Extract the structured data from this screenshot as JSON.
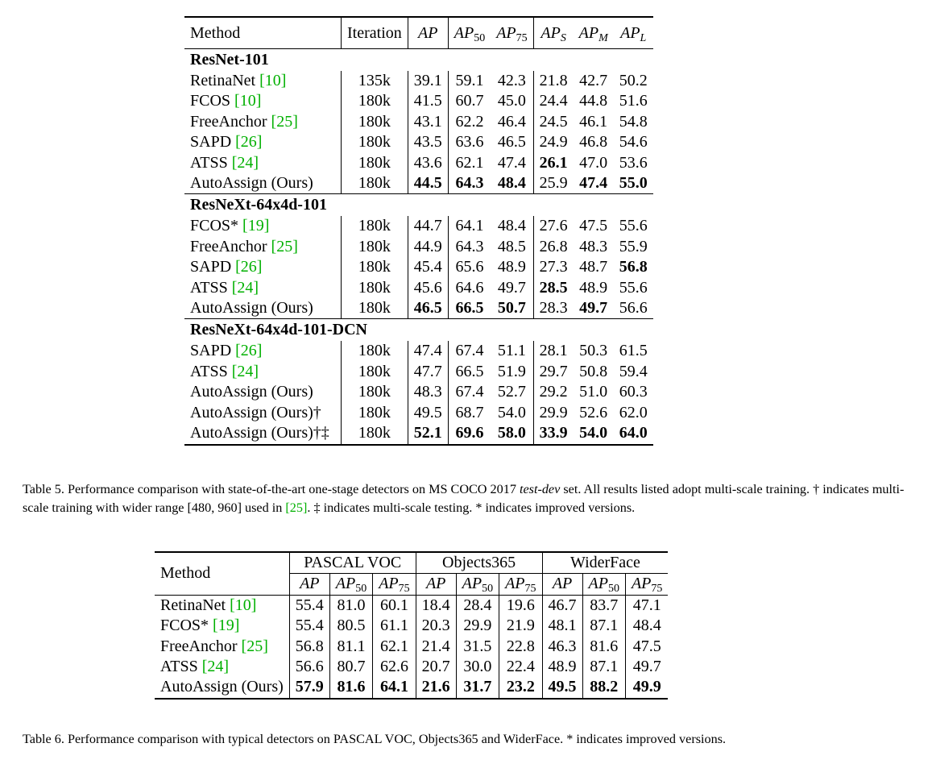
{
  "table5": {
    "headers": {
      "method": "Method",
      "iteration": "Iteration",
      "ap": "AP",
      "ap50": "AP",
      "ap50_sub": "50",
      "ap75": "AP",
      "ap75_sub": "75",
      "aps": "AP",
      "aps_sub": "S",
      "apm": "AP",
      "apm_sub": "M",
      "apl": "AP",
      "apl_sub": "L"
    },
    "group1": {
      "title": "ResNet-101",
      "rows": [
        {
          "name": "RetinaNet ",
          "cite": "[10]",
          "iter": "135k",
          "ap": "39.1",
          "ap50": "59.1",
          "ap75": "42.3",
          "aps": "21.8",
          "apm": "42.7",
          "apl": "50.2"
        },
        {
          "name": "FCOS ",
          "cite": "[10]",
          "iter": "180k",
          "ap": "41.5",
          "ap50": "60.7",
          "ap75": "45.0",
          "aps": "24.4",
          "apm": "44.8",
          "apl": "51.6"
        },
        {
          "name": "FreeAnchor ",
          "cite": "[25]",
          "iter": "180k",
          "ap": "43.1",
          "ap50": "62.2",
          "ap75": "46.4",
          "aps": "24.5",
          "apm": "46.1",
          "apl": "54.8"
        },
        {
          "name": "SAPD ",
          "cite": "[26]",
          "iter": "180k",
          "ap": "43.5",
          "ap50": "63.6",
          "ap75": "46.5",
          "aps": "24.9",
          "apm": "46.8",
          "apl": "54.6"
        },
        {
          "name": "ATSS ",
          "cite": "[24]",
          "iter": "180k",
          "ap": "43.6",
          "ap50": "62.1",
          "ap75": "47.4",
          "aps": "26.1",
          "apm": "47.0",
          "apl": "53.6"
        },
        {
          "name": "AutoAssign (Ours)",
          "cite": "",
          "iter": "180k",
          "ap": "44.5",
          "ap50": "64.3",
          "ap75": "48.4",
          "aps": "25.9",
          "apm": "47.4",
          "apl": "55.0"
        }
      ]
    },
    "group2": {
      "title": "ResNeXt-64x4d-101",
      "rows": [
        {
          "name": "FCOS* ",
          "cite": "[19]",
          "iter": "180k",
          "ap": "44.7",
          "ap50": "64.1",
          "ap75": "48.4",
          "aps": "27.6",
          "apm": "47.5",
          "apl": "55.6"
        },
        {
          "name": "FreeAnchor ",
          "cite": "[25]",
          "iter": "180k",
          "ap": "44.9",
          "ap50": "64.3",
          "ap75": "48.5",
          "aps": "26.8",
          "apm": "48.3",
          "apl": "55.9"
        },
        {
          "name": "SAPD ",
          "cite": "[26]",
          "iter": "180k",
          "ap": "45.4",
          "ap50": "65.6",
          "ap75": "48.9",
          "aps": "27.3",
          "apm": "48.7",
          "apl": "56.8"
        },
        {
          "name": "ATSS ",
          "cite": "[24]",
          "iter": "180k",
          "ap": "45.6",
          "ap50": "64.6",
          "ap75": "49.7",
          "aps": "28.5",
          "apm": "48.9",
          "apl": "55.6"
        },
        {
          "name": "AutoAssign (Ours)",
          "cite": "",
          "iter": "180k",
          "ap": "46.5",
          "ap50": "66.5",
          "ap75": "50.7",
          "aps": "28.3",
          "apm": "49.7",
          "apl": "56.6"
        }
      ]
    },
    "group3": {
      "title": "ResNeXt-64x4d-101-DCN",
      "rows": [
        {
          "name": "SAPD ",
          "cite": "[26]",
          "iter": "180k",
          "ap": "47.4",
          "ap50": "67.4",
          "ap75": "51.1",
          "aps": "28.1",
          "apm": "50.3",
          "apl": "61.5"
        },
        {
          "name": "ATSS ",
          "cite": "[24]",
          "iter": "180k",
          "ap": "47.7",
          "ap50": "66.5",
          "ap75": "51.9",
          "aps": "29.7",
          "apm": "50.8",
          "apl": "59.4"
        },
        {
          "name": "AutoAssign (Ours)",
          "cite": "",
          "iter": "180k",
          "ap": "48.3",
          "ap50": "67.4",
          "ap75": "52.7",
          "aps": "29.2",
          "apm": "51.0",
          "apl": "60.3"
        },
        {
          "name": "AutoAssign (Ours)†",
          "cite": "",
          "iter": "180k",
          "ap": "49.5",
          "ap50": "68.7",
          "ap75": "54.0",
          "aps": "29.9",
          "apm": "52.6",
          "apl": "62.0"
        },
        {
          "name": "AutoAssign (Ours)†‡",
          "cite": "",
          "iter": "180k",
          "ap": "52.1",
          "ap50": "69.6",
          "ap75": "58.0",
          "aps": "33.9",
          "apm": "54.0",
          "apl": "64.0"
        }
      ]
    },
    "caption": {
      "p1": "Table 5. Performance comparison with state-of-the-art one-stage detectors on MS COCO 2017 ",
      "p2": "test-dev",
      "p3": " set. All results listed adopt multi-scale training. † indicates multi-scale training with wider range ",
      "p4": "[480, 960]",
      "p5": " used in ",
      "cite": "[25]",
      "p6": ". ‡ indicates multi-scale testing. * indicates improved versions."
    }
  },
  "table6": {
    "headers": {
      "method": "Method",
      "voc": "PASCAL VOC",
      "obj": "Objects365",
      "wider": "WiderFace",
      "ap": "AP",
      "ap50": "AP",
      "ap50_sub": "50",
      "ap75": "AP",
      "ap75_sub": "75"
    },
    "rows": [
      {
        "name": "RetinaNet ",
        "cite": "[10]",
        "v": [
          "55.4",
          "81.0",
          "60.1"
        ],
        "o": [
          "18.4",
          "28.4",
          "19.6"
        ],
        "w": [
          "46.7",
          "83.7",
          "47.1"
        ]
      },
      {
        "name": "FCOS* ",
        "cite": "[19]",
        "v": [
          "55.4",
          "80.5",
          "61.1"
        ],
        "o": [
          "20.3",
          "29.9",
          "21.9"
        ],
        "w": [
          "48.1",
          "87.1",
          "48.4"
        ]
      },
      {
        "name": "FreeAnchor ",
        "cite": "[25]",
        "v": [
          "56.8",
          "81.1",
          "62.1"
        ],
        "o": [
          "21.4",
          "31.5",
          "22.8"
        ],
        "w": [
          "46.3",
          "81.6",
          "47.5"
        ]
      },
      {
        "name": "ATSS ",
        "cite": "[24]",
        "v": [
          "56.6",
          "80.7",
          "62.6"
        ],
        "o": [
          "20.7",
          "30.0",
          "22.4"
        ],
        "w": [
          "48.9",
          "87.1",
          "49.7"
        ]
      },
      {
        "name": "AutoAssign (Ours)",
        "cite": "",
        "v": [
          "57.9",
          "81.6",
          "64.1"
        ],
        "o": [
          "21.6",
          "31.7",
          "23.2"
        ],
        "w": [
          "49.5",
          "88.2",
          "49.9"
        ]
      }
    ],
    "caption": "Table 6. Performance comparison with typical detectors on PASCAL VOC, Objects365 and WiderFace. * indicates improved versions."
  }
}
